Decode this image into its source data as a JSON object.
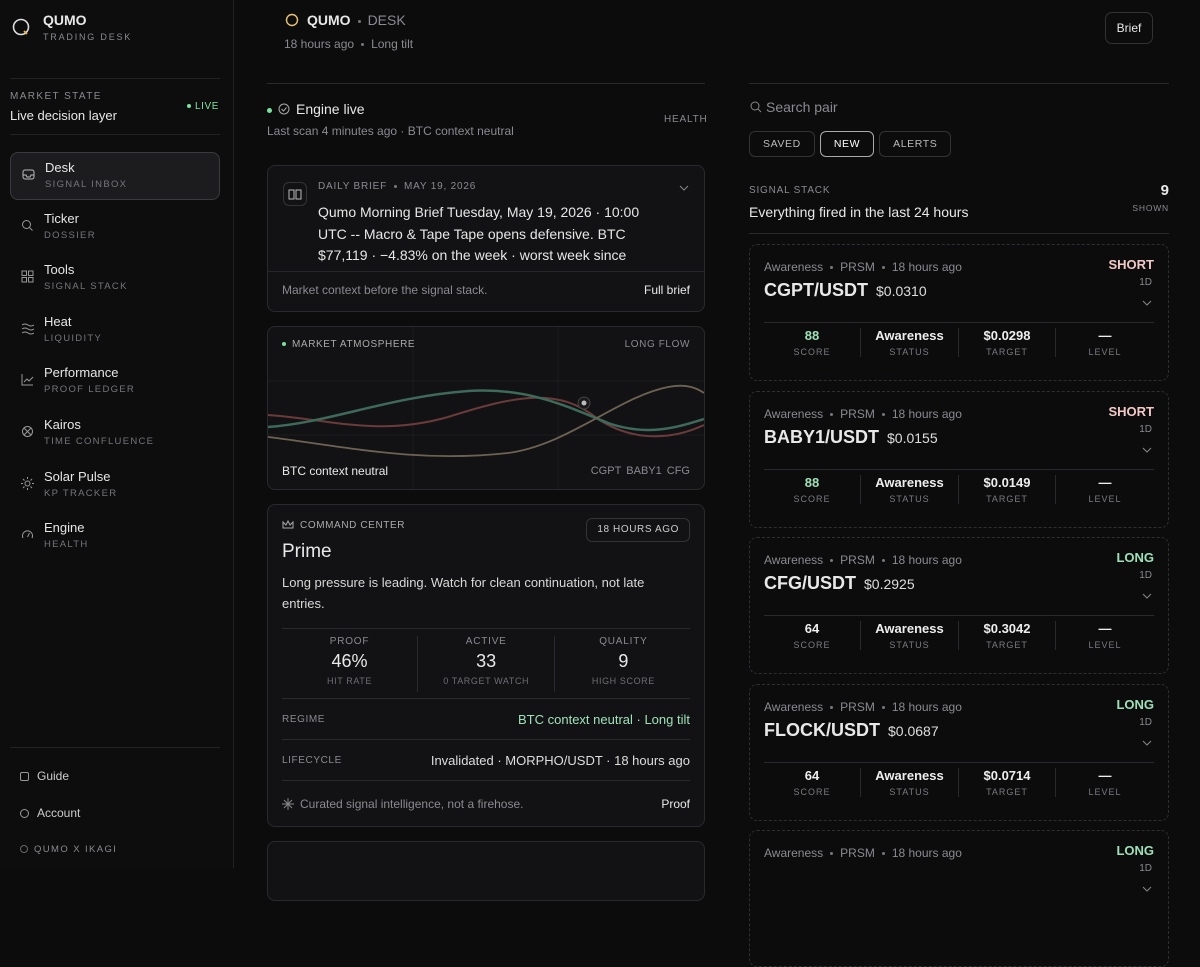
{
  "sidebar": {
    "brand": "QUMO",
    "brand_sub": "TRADING DESK",
    "market_state": {
      "label": "MARKET STATE",
      "title": "Live decision layer",
      "status": "LIVE"
    },
    "nav": [
      {
        "label": "Desk",
        "sub": "SIGNAL INBOX",
        "active": true
      },
      {
        "label": "Ticker",
        "sub": "DOSSIER",
        "active": false
      },
      {
        "label": "Tools",
        "sub": "SIGNAL STACK",
        "active": false
      },
      {
        "label": "Heat",
        "sub": "LIQUIDITY",
        "active": false
      },
      {
        "label": "Performance",
        "sub": "PROOF LEDGER",
        "active": false
      },
      {
        "label": "Kairos",
        "sub": "TIME CONFLUENCE",
        "active": false
      },
      {
        "label": "Solar Pulse",
        "sub": "KP TRACKER",
        "active": false
      },
      {
        "label": "Engine",
        "sub": "HEALTH",
        "active": false
      }
    ],
    "footer": [
      "Guide",
      "Account"
    ],
    "credit": "QUMO X IKAGI"
  },
  "header": {
    "brand": "QUMO",
    "section": "DESK",
    "time": "18 hours ago",
    "tilt": "Long tilt",
    "button": "Brief"
  },
  "engine": {
    "title": "Engine live",
    "subtitle": "Last scan 4 minutes ago · BTC context neutral",
    "link": "HEALTH"
  },
  "brief": {
    "label": "DAILY BRIEF",
    "date": "MAY 19, 2026",
    "text": "Qumo Morning Brief Tuesday, May 19, 2026 · 10:00 UTC -- Macro & Tape Tape opens defensive. BTC $77,119 · −4.83% on the week · worst week since",
    "footer": "Market context before the signal stack.",
    "link": "Full brief"
  },
  "atmosphere": {
    "label": "MARKET ATMOSPHERE",
    "flow": "LONG FLOW",
    "context": "BTC context neutral",
    "pairs": [
      "CGPT",
      "BABY1",
      "CFG"
    ]
  },
  "command": {
    "label": "COMMAND CENTER",
    "time": "18 HOURS AGO",
    "title": "Prime",
    "text": "Long pressure is leading. Watch for clean continuation, not late entries.",
    "stats": [
      {
        "label": "PROOF",
        "value": "46%",
        "sub": "HIT RATE"
      },
      {
        "label": "ACTIVE",
        "value": "33",
        "sub": "0 TARGET WATCH"
      },
      {
        "label": "QUALITY",
        "value": "9",
        "sub": "HIGH SCORE"
      }
    ],
    "rows": [
      {
        "label": "REGIME",
        "value": "BTC context neutral · Long tilt",
        "accent": true
      },
      {
        "label": "LIFECYCLE",
        "value": "Invalidated · MORPHO/USDT · 18 hours ago",
        "accent": false
      }
    ],
    "footer": "Curated signal intelligence, not a firehose.",
    "link": "Proof"
  },
  "search": {
    "placeholder": "Search pair"
  },
  "tabs": [
    {
      "label": "SAVED",
      "active": false
    },
    {
      "label": "NEW",
      "active": true
    },
    {
      "label": "ALERTS",
      "active": false
    }
  ],
  "stack": {
    "label": "SIGNAL STACK",
    "subtitle": "Everything fired in the last 24 hours",
    "count": "9",
    "count_label": "SHOWN"
  },
  "signals": [
    {
      "source": "Awareness",
      "engine": "PRSM",
      "time": "18 hours ago",
      "pair": "CGPT/USDT",
      "price": "$0.0310",
      "side": "SHORT",
      "tf": "1D",
      "metrics": [
        {
          "value": "88",
          "label": "SCORE"
        },
        {
          "value": "Awareness",
          "label": "STATUS"
        },
        {
          "value": "$0.0298",
          "label": "TARGET"
        },
        {
          "value": "—",
          "label": "LEVEL"
        }
      ]
    },
    {
      "source": "Awareness",
      "engine": "PRSM",
      "time": "18 hours ago",
      "pair": "BABY1/USDT",
      "price": "$0.0155",
      "side": "SHORT",
      "tf": "1D",
      "metrics": [
        {
          "value": "88",
          "label": "SCORE"
        },
        {
          "value": "Awareness",
          "label": "STATUS"
        },
        {
          "value": "$0.0149",
          "label": "TARGET"
        },
        {
          "value": "—",
          "label": "LEVEL"
        }
      ]
    },
    {
      "source": "Awareness",
      "engine": "PRSM",
      "time": "18 hours ago",
      "pair": "CFG/USDT",
      "price": "$0.2925",
      "side": "LONG",
      "tf": "1D",
      "metrics": [
        {
          "value": "64",
          "label": "SCORE"
        },
        {
          "value": "Awareness",
          "label": "STATUS"
        },
        {
          "value": "$0.3042",
          "label": "TARGET"
        },
        {
          "value": "—",
          "label": "LEVEL"
        }
      ]
    },
    {
      "source": "Awareness",
      "engine": "PRSM",
      "time": "18 hours ago",
      "pair": "FLOCK/USDT",
      "price": "$0.0687",
      "side": "LONG",
      "tf": "1D",
      "metrics": [
        {
          "value": "64",
          "label": "SCORE"
        },
        {
          "value": "Awareness",
          "label": "STATUS"
        },
        {
          "value": "$0.0714",
          "label": "TARGET"
        },
        {
          "value": "—",
          "label": "LEVEL"
        }
      ]
    },
    {
      "source": "Awareness",
      "engine": "PRSM",
      "time": "18 hours ago",
      "side": "LONG",
      "tf": "1D"
    }
  ]
}
